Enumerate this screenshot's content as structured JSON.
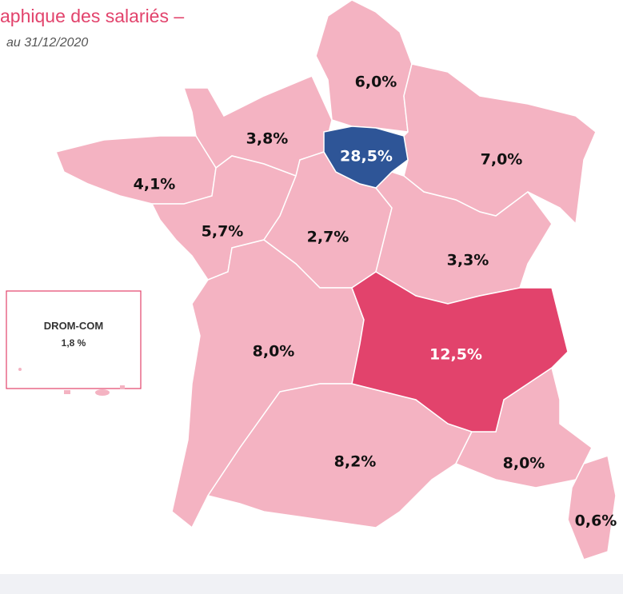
{
  "header": {
    "title": "aphique des salariés –",
    "subtitle": "au 31/12/2020"
  },
  "regions": [
    {
      "label": "6,0%"
    },
    {
      "label": "28,5%"
    },
    {
      "label": "3,8%"
    },
    {
      "label": "4,1%"
    },
    {
      "label": "7,0%"
    },
    {
      "label": "5,7%"
    },
    {
      "label": "2,7%"
    },
    {
      "label": "3,3%"
    },
    {
      "label": "8,0%"
    },
    {
      "label": "12,5%"
    },
    {
      "label": "8,2%"
    },
    {
      "label": "8,0%"
    },
    {
      "label": "0,6%"
    }
  ],
  "drom_com": {
    "title": "DROM-COM",
    "label": "1,8 %"
  }
}
